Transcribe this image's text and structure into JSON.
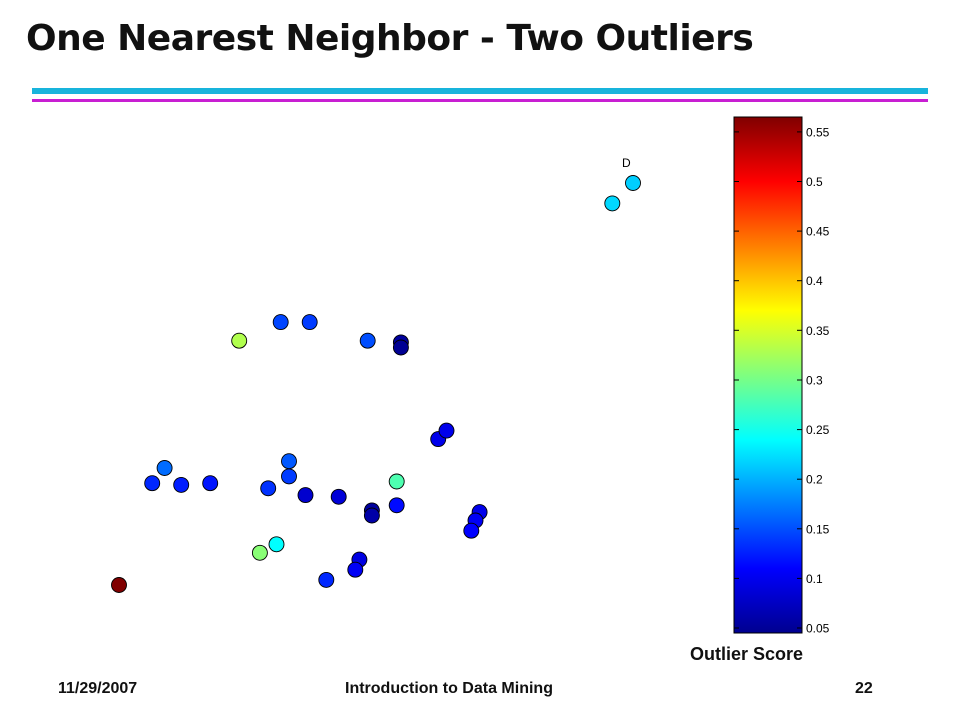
{
  "slide": {
    "title": "One Nearest Neighbor - Two Outliers",
    "footer_date": "11/29/2007",
    "footer_course": "Introduction to Data Mining",
    "page_number": "22",
    "colors": {
      "rule_top": "#18b4dc",
      "rule_bottom": "#c81ed2"
    }
  },
  "chart_data": {
    "type": "scatter",
    "title": "",
    "xlabel": "",
    "ylabel": "",
    "color_by": "outlier_score",
    "colormap": "jet",
    "colorbar": {
      "label": "Outlier Score",
      "range": [
        0.045,
        0.565
      ],
      "ticks": [
        0.05,
        0.1,
        0.15,
        0.2,
        0.25,
        0.3,
        0.35,
        0.4,
        0.45,
        0.5,
        0.55
      ]
    },
    "annotations": [
      {
        "text": "D",
        "point_index": 1
      }
    ],
    "points": [
      {
        "x": 2.1,
        "y": 0.3,
        "score": 0.565
      },
      {
        "x": 14.5,
        "y": 24.0,
        "score": 0.215
      },
      {
        "x": 14.0,
        "y": 22.8,
        "score": 0.22
      },
      {
        "x": 5.5,
        "y": 2.2,
        "score": 0.31
      },
      {
        "x": 5.0,
        "y": 14.7,
        "score": 0.33
      },
      {
        "x": 8.8,
        "y": 6.4,
        "score": 0.28
      },
      {
        "x": 5.9,
        "y": 2.7,
        "score": 0.24
      },
      {
        "x": 6.0,
        "y": 15.8,
        "score": 0.145
      },
      {
        "x": 6.7,
        "y": 15.8,
        "score": 0.14
      },
      {
        "x": 8.1,
        "y": 14.7,
        "score": 0.15
      },
      {
        "x": 8.9,
        "y": 14.6,
        "score": 0.06
      },
      {
        "x": 8.9,
        "y": 14.3,
        "score": 0.055
      },
      {
        "x": 9.8,
        "y": 8.9,
        "score": 0.1
      },
      {
        "x": 10.0,
        "y": 9.4,
        "score": 0.1
      },
      {
        "x": 3.2,
        "y": 7.2,
        "score": 0.165
      },
      {
        "x": 2.9,
        "y": 6.3,
        "score": 0.13
      },
      {
        "x": 3.6,
        "y": 6.2,
        "score": 0.125
      },
      {
        "x": 4.3,
        "y": 6.3,
        "score": 0.12
      },
      {
        "x": 6.2,
        "y": 7.6,
        "score": 0.155
      },
      {
        "x": 6.2,
        "y": 6.7,
        "score": 0.14
      },
      {
        "x": 5.7,
        "y": 6.0,
        "score": 0.135
      },
      {
        "x": 6.6,
        "y": 5.6,
        "score": 0.085
      },
      {
        "x": 7.4,
        "y": 5.5,
        "score": 0.09
      },
      {
        "x": 8.8,
        "y": 5.0,
        "score": 0.115
      },
      {
        "x": 8.2,
        "y": 4.7,
        "score": 0.06
      },
      {
        "x": 8.2,
        "y": 4.4,
        "score": 0.065
      },
      {
        "x": 7.9,
        "y": 1.8,
        "score": 0.095
      },
      {
        "x": 7.8,
        "y": 1.2,
        "score": 0.105
      },
      {
        "x": 7.1,
        "y": 0.6,
        "score": 0.13
      },
      {
        "x": 10.8,
        "y": 4.6,
        "score": 0.1
      },
      {
        "x": 10.7,
        "y": 4.1,
        "score": 0.105
      },
      {
        "x": 10.6,
        "y": 3.5,
        "score": 0.11
      }
    ]
  }
}
